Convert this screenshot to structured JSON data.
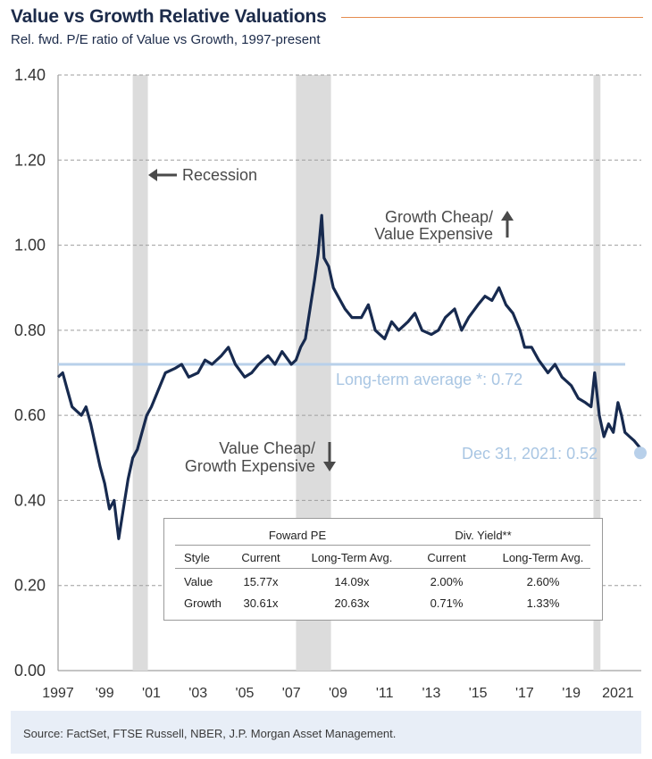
{
  "header": {
    "title": "Value vs Growth Relative Valuations",
    "subtitle": "Rel. fwd. P/E ratio of Value vs Growth, 1997-present"
  },
  "colors": {
    "series": "#172a4f",
    "average": "#b8d0ea",
    "recession": "#dcdcdc",
    "title_rule": "#e58c4f",
    "endpoint": "#b8d0ea"
  },
  "annotations": {
    "recession": "Recession",
    "growth_cheap_1": "Growth Cheap/",
    "growth_cheap_2": "Value Expensive",
    "value_cheap_1": "Value Cheap/",
    "value_cheap_2": "Growth Expensive",
    "average_label": "Long-term average *: 0.72",
    "end_label": "Dec 31, 2021: 0.52"
  },
  "table": {
    "group_headers": [
      "Foward PE",
      "Div. Yield**"
    ],
    "columns": [
      "Style",
      "Current",
      "Long-Term Avg.",
      "Current",
      "Long-Term Avg."
    ],
    "rows": [
      [
        "Value",
        "15.77x",
        "14.09x",
        "2.00%",
        "2.60%"
      ],
      [
        "Growth",
        "30.61x",
        "20.63x",
        "0.71%",
        "1.33%"
      ]
    ]
  },
  "source": "Source: FactSet, FTSE Russell, NBER, J.P. Morgan Asset Management.",
  "chart_data": {
    "type": "line",
    "title": "Value vs Growth Relative Valuations",
    "subtitle": "Rel. fwd. P/E ratio of Value vs Growth, 1997-present",
    "xlabel": "",
    "ylabel": "",
    "xlim": [
      1997.0,
      2022.0
    ],
    "ylim": [
      0.0,
      1.4
    ],
    "grid": true,
    "x_tick_values": [
      1997,
      1999,
      2001,
      2003,
      2005,
      2007,
      2009,
      2011,
      2013,
      2015,
      2017,
      2019,
      2021
    ],
    "x_tick_labels": [
      "1997",
      "'99",
      "'01",
      "'03",
      "'05",
      "'07",
      "'09",
      "'11",
      "'13",
      "'15",
      "'17",
      "'19",
      "2021"
    ],
    "y_tick_values": [
      0.0,
      0.2,
      0.4,
      0.6,
      0.8,
      1.0,
      1.2,
      1.4
    ],
    "y_tick_labels": [
      "0.00",
      "0.20",
      "0.40",
      "0.60",
      "0.80",
      "1.00",
      "1.20",
      "1.40"
    ],
    "recessions": [
      [
        2000.2,
        2000.85
      ],
      [
        2007.2,
        2008.7
      ],
      [
        2019.95,
        2020.25
      ]
    ],
    "average": 0.72,
    "series": [
      {
        "x": [
          1997.0,
          1997.2,
          1997.4,
          1997.6,
          1997.8,
          1998.0,
          1998.2,
          1998.4,
          1998.6,
          1998.8,
          1999.0,
          1999.2,
          1999.4,
          1999.6,
          1999.8,
          2000.0,
          2000.2,
          2000.4,
          2000.6,
          2000.8,
          2001.0,
          2001.3,
          2001.6,
          2002.0,
          2002.3,
          2002.6,
          2003.0,
          2003.3,
          2003.6,
          2004.0,
          2004.3,
          2004.6,
          2005.0,
          2005.3,
          2005.6,
          2006.0,
          2006.3,
          2006.6,
          2007.0,
          2007.2,
          2007.4,
          2007.6,
          2007.8,
          2008.0,
          2008.15,
          2008.3,
          2008.4,
          2008.6,
          2008.8,
          2009.0,
          2009.3,
          2009.6,
          2010.0,
          2010.3,
          2010.6,
          2011.0,
          2011.3,
          2011.6,
          2012.0,
          2012.3,
          2012.6,
          2013.0,
          2013.3,
          2013.6,
          2014.0,
          2014.3,
          2014.6,
          2015.0,
          2015.3,
          2015.6,
          2015.9,
          2016.2,
          2016.5,
          2016.8,
          2017.0,
          2017.3,
          2017.6,
          2018.0,
          2018.3,
          2018.6,
          2019.0,
          2019.3,
          2019.6,
          2019.85,
          2020.0,
          2020.2,
          2020.4,
          2020.6,
          2020.8,
          2021.0,
          2021.15,
          2021.3,
          2021.5,
          2021.7,
          2021.85,
          2022.0
        ],
        "values": [
          0.69,
          0.7,
          0.66,
          0.62,
          0.61,
          0.6,
          0.62,
          0.58,
          0.53,
          0.48,
          0.44,
          0.38,
          0.4,
          0.31,
          0.38,
          0.45,
          0.5,
          0.52,
          0.56,
          0.6,
          0.62,
          0.66,
          0.7,
          0.71,
          0.72,
          0.69,
          0.7,
          0.73,
          0.72,
          0.74,
          0.76,
          0.72,
          0.69,
          0.7,
          0.72,
          0.74,
          0.72,
          0.75,
          0.72,
          0.73,
          0.76,
          0.78,
          0.85,
          0.92,
          0.98,
          1.07,
          0.97,
          0.95,
          0.9,
          0.88,
          0.85,
          0.83,
          0.83,
          0.86,
          0.8,
          0.78,
          0.82,
          0.8,
          0.82,
          0.84,
          0.8,
          0.79,
          0.8,
          0.83,
          0.85,
          0.8,
          0.83,
          0.86,
          0.88,
          0.87,
          0.9,
          0.86,
          0.84,
          0.8,
          0.76,
          0.76,
          0.73,
          0.7,
          0.72,
          0.69,
          0.67,
          0.64,
          0.63,
          0.62,
          0.7,
          0.6,
          0.55,
          0.58,
          0.56,
          0.63,
          0.6,
          0.56,
          0.55,
          0.54,
          0.53,
          0.52
        ]
      }
    ]
  }
}
